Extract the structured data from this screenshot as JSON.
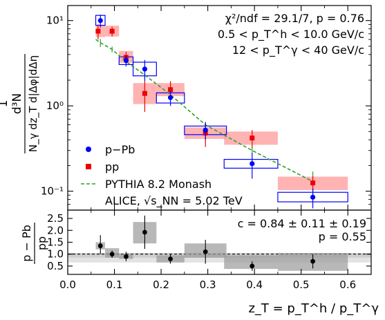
{
  "chart_data": [
    {
      "type": "scatter",
      "yscale": "log",
      "ylim": [
        0.06,
        15
      ],
      "ylabel_lines": [
        "d³N",
        "N_γ dz_T d|Δφ|dΔη"
      ],
      "yticks": [
        {
          "v": 0.1,
          "label": "10⁻¹"
        },
        {
          "v": 1,
          "label": "10⁰"
        },
        {
          "v": 10,
          "label": "10¹"
        }
      ],
      "annotations": [
        "χ²/ndf = 29.1/7, p = 0.76",
        "0.5 < p_T^h < 10.0 GeV/c",
        "12 < p_T^γ < 40 GeV/c"
      ],
      "bottom_label": "ALICE, √s_NN = 5.02 TeV",
      "legend": [
        {
          "name": "p−Pb",
          "color": "#0000ff",
          "marker": "circle"
        },
        {
          "name": "pp",
          "color": "#ee0000",
          "marker": "square"
        },
        {
          "name": "PYTHIA 8.2 Monash",
          "color": "#2ca02c",
          "marker": "dashed-line"
        }
      ],
      "series": [
        {
          "name": "p−Pb",
          "color": "#0000ff",
          "points": [
            {
              "x": 0.07,
              "y": 10.0,
              "yerr": [
                1.7,
                1.7
              ],
              "sys": [
                0.06,
                0.08,
                8.8,
                11.5
              ]
            },
            {
              "x": 0.125,
              "y": 3.4,
              "yerr": [
                0.5,
                0.5
              ],
              "sys": [
                0.11,
                0.14,
                3.05,
                3.75
              ]
            },
            {
              "x": 0.165,
              "y": 2.7,
              "yerr": [
                0.75,
                0.75
              ],
              "sys": [
                0.14,
                0.19,
                2.25,
                3.25
              ]
            },
            {
              "x": 0.22,
              "y": 1.25,
              "yerr": [
                0.25,
                0.25
              ],
              "sys": [
                0.19,
                0.25,
                1.08,
                1.42
              ]
            },
            {
              "x": 0.295,
              "y": 0.52,
              "yerr": [
                0.12,
                0.12
              ],
              "sys": [
                0.25,
                0.34,
                0.46,
                0.58
              ]
            },
            {
              "x": 0.395,
              "y": 0.21,
              "yerr": [
                0.07,
                0.07
              ],
              "sys": [
                0.335,
                0.45,
                0.186,
                0.236
              ]
            },
            {
              "x": 0.525,
              "y": 0.085,
              "yerr": [
                0.022,
                0.022
              ],
              "sys": [
                0.45,
                0.6,
                0.075,
                0.097
              ]
            }
          ]
        },
        {
          "name": "pp",
          "color": "#ee0000",
          "points": [
            {
              "x": 0.065,
              "y": 7.5,
              "yerr": [
                1.5,
                1.5
              ],
              "sys": [
                0.06,
                0.08,
                6.4,
                8.9
              ]
            },
            {
              "x": 0.095,
              "y": 7.5,
              "yerr": [
                1.0,
                1.0
              ],
              "sys": [
                0.08,
                0.11,
                6.5,
                8.7
              ]
            },
            {
              "x": 0.125,
              "y": 3.7,
              "yerr": [
                0.6,
                0.6
              ],
              "sys": [
                0.11,
                0.14,
                3.2,
                4.4
              ]
            },
            {
              "x": 0.165,
              "y": 1.4,
              "yerr": [
                0.55,
                0.55
              ],
              "sys": [
                0.14,
                0.19,
                1.05,
                1.85
              ]
            },
            {
              "x": 0.22,
              "y": 1.55,
              "yerr": [
                0.4,
                0.4
              ],
              "sys": [
                0.19,
                0.25,
                1.3,
                1.85
              ]
            },
            {
              "x": 0.295,
              "y": 0.48,
              "yerr": [
                0.15,
                0.15
              ],
              "sys": [
                0.25,
                0.34,
                0.41,
                0.56
              ]
            },
            {
              "x": 0.395,
              "y": 0.42,
              "yerr": [
                0.1,
                0.1
              ],
              "sys": [
                0.335,
                0.45,
                0.35,
                0.5
              ]
            },
            {
              "x": 0.525,
              "y": 0.125,
              "yerr": [
                0.025,
                0.025
              ],
              "sys": [
                0.45,
                0.6,
                0.103,
                0.148
              ]
            }
          ]
        }
      ],
      "pythia": {
        "x": [
          0.06,
          0.07,
          0.095,
          0.125,
          0.165,
          0.22,
          0.295,
          0.395,
          0.525
        ],
        "y": [
          6.0,
          5.5,
          4.6,
          3.3,
          2.3,
          1.35,
          0.6,
          0.3,
          0.13
        ],
        "err": [
          0.6,
          0.6,
          0.35,
          0.3,
          0.15,
          0.1,
          0.05,
          0.03,
          0.04
        ]
      }
    },
    {
      "type": "scatter",
      "ylim": [
        0.15,
        2.85
      ],
      "ylabel_lines": [
        "p − Pb",
        "pp"
      ],
      "yticks": [
        0.5,
        1.0,
        1.5,
        2.0,
        2.5
      ],
      "xlim": [
        0.0,
        0.65
      ],
      "xticks": [
        0.0,
        0.1,
        0.2,
        0.3,
        0.4,
        0.5,
        0.6
      ],
      "xlabel": "z_T = p_T^h / p_T^γ",
      "reference_line": 1.0,
      "fit_band": [
        0.85,
        1.05
      ],
      "fit_band2": [
        0.65,
        1.04
      ],
      "annotations": [
        "c = 0.84 ± 0.11 ± 0.19",
        "p = 0.55"
      ],
      "points": [
        {
          "x": 0.07,
          "y": 1.35,
          "yerr": [
            0.35,
            0.45
          ],
          "sys": [
            0.06,
            0.08,
            1.2,
            1.5
          ]
        },
        {
          "x": 0.095,
          "y": 1.0,
          "yerr": [
            0.15,
            0.15
          ],
          "sys": [
            0.08,
            0.11,
            0.85,
            1.25
          ]
        },
        {
          "x": 0.125,
          "y": 0.9,
          "yerr": [
            0.2,
            0.2
          ],
          "sys": [
            0.11,
            0.14,
            0.8,
            1.0
          ]
        },
        {
          "x": 0.165,
          "y": 1.92,
          "yerr": [
            0.7,
            0.7
          ],
          "sys": [
            0.14,
            0.19,
            1.45,
            2.35
          ]
        },
        {
          "x": 0.22,
          "y": 0.8,
          "yerr": [
            0.2,
            0.2
          ],
          "sys": [
            0.19,
            0.25,
            0.65,
            0.95
          ]
        },
        {
          "x": 0.295,
          "y": 1.1,
          "yerr": [
            0.5,
            0.5
          ],
          "sys": [
            0.25,
            0.34,
            0.85,
            1.45
          ]
        },
        {
          "x": 0.395,
          "y": 0.5,
          "yerr": [
            0.2,
            0.2
          ],
          "sys": [
            0.335,
            0.45,
            0.38,
            0.95
          ]
        },
        {
          "x": 0.525,
          "y": 0.7,
          "yerr": [
            0.3,
            0.3
          ],
          "sys": [
            0.45,
            0.6,
            0.3,
            1.05
          ]
        }
      ]
    }
  ]
}
